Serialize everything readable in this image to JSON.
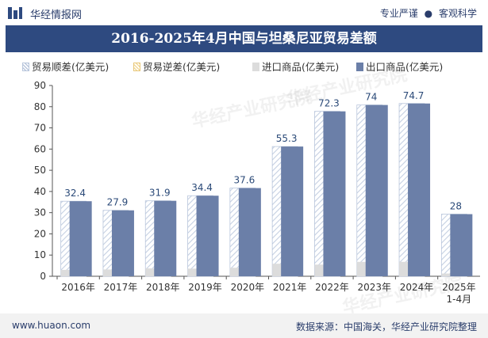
{
  "header": {
    "brand": "华经情报网",
    "tag1": "专业严谨",
    "dot": "●",
    "tag2": "客观科学"
  },
  "footer": {
    "site": "www.huaon.com",
    "source": "数据来源：中国海关，华经产业研究院整理"
  },
  "watermark": "华经产业研究院",
  "colors": {
    "title_bg": "#2e4a80",
    "export": "#6b7fa8",
    "import": "#dcdcdc",
    "surplus_stroke": "#b9c6dc",
    "label": "#2b4a78"
  },
  "chart_data": {
    "type": "bar",
    "title": "2016-2025年4月中国与坦桑尼亚贸易差额",
    "categories": [
      "2016年",
      "2017年",
      "2018年",
      "2019年",
      "2020年",
      "2021年",
      "2022年",
      "2023年",
      "2024年",
      "2025年 1-4月"
    ],
    "series": [
      {
        "name": "贸易顺差(亿美元)",
        "values": [
          32.4,
          27.9,
          31.9,
          34.4,
          37.6,
          55.3,
          72.3,
          74,
          74.7,
          28
        ]
      },
      {
        "name": "贸易逆差(亿美元)",
        "values": [
          0,
          0,
          0,
          0,
          0,
          0,
          0,
          0,
          0,
          0
        ]
      },
      {
        "name": "进口商品(亿美元)",
        "values": [
          3.0,
          3.2,
          3.7,
          3.6,
          4.0,
          5.9,
          5.5,
          6.8,
          6.8,
          1.3
        ]
      },
      {
        "name": "出口商品(亿美元)",
        "values": [
          35.4,
          31.1,
          35.6,
          38.0,
          41.6,
          61.2,
          77.8,
          80.8,
          81.5,
          29.3
        ]
      }
    ],
    "data_labels": [
      "32.4",
      "27.9",
      "31.9",
      "34.4",
      "37.6",
      "55.3",
      "72.3",
      "74",
      "74.7",
      "28"
    ],
    "ylim": [
      0,
      90
    ],
    "yticks": [
      "0",
      "10",
      "20",
      "30",
      "40",
      "50",
      "60",
      "70",
      "80",
      "90"
    ],
    "legend_position": "top",
    "grid": false
  }
}
